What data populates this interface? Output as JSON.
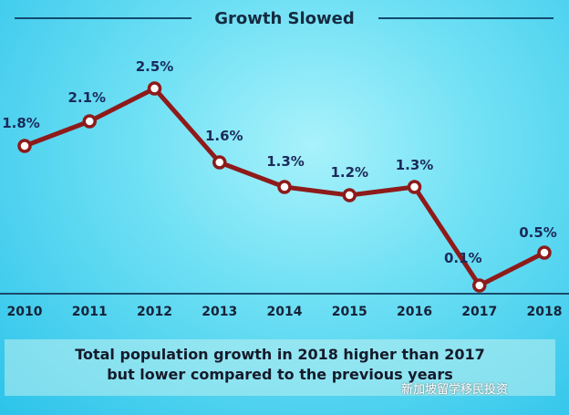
{
  "chart_data": {
    "type": "line",
    "title": "Growth Slowed",
    "categories": [
      "2010",
      "2011",
      "2012",
      "2013",
      "2014",
      "2015",
      "2016",
      "2017",
      "2018"
    ],
    "values": [
      1.8,
      2.1,
      2.5,
      1.6,
      1.3,
      1.2,
      1.3,
      0.1,
      0.5
    ],
    "labels": [
      "1.8%",
      "2.1%",
      "2.5%",
      "1.6%",
      "1.3%",
      "1.2%",
      "1.3%",
      "0.1%",
      "0.5%"
    ],
    "xlabel": "",
    "ylabel": "",
    "ylim": [
      0,
      2.6
    ],
    "grid": false,
    "line_color": "#8e1a1a"
  },
  "caption": {
    "line1": "Total population growth in 2018 higher than 2017",
    "line2": "but lower compared to the previous years"
  },
  "watermark": "新加坡留学移民投资"
}
